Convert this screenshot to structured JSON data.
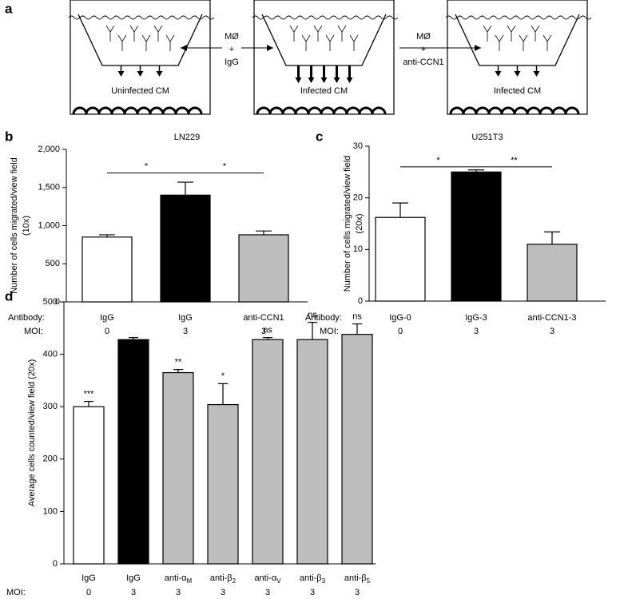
{
  "panel_labels": [
    "a",
    "b",
    "c",
    "d"
  ],
  "panel_a": {
    "chambers": [
      "Uninfected CM",
      "Infected CM",
      "Infected CM"
    ],
    "treatments": [
      [
        "MØ",
        "+",
        "IgG"
      ],
      [
        "MØ",
        "+",
        "anti-CCN1"
      ]
    ]
  },
  "chart_data": [
    {
      "type": "bar",
      "title": "LN229",
      "ylabel": [
        "Number of cells migrated/view field",
        "(10x)"
      ],
      "row_labels": [
        "Antibody:",
        "MOI:"
      ],
      "categories": [
        "IgG",
        "IgG",
        "anti-CCN1"
      ],
      "moi": [
        0,
        3,
        3
      ],
      "values": [
        850,
        1400,
        880
      ],
      "errors": [
        30,
        170,
        50
      ],
      "colors": [
        "#ffffff",
        "#000000",
        "#bebebe"
      ],
      "ylim": [
        0,
        2000
      ],
      "yticks": [
        0,
        500,
        {
          "value": 1000,
          "label": "1,000"
        },
        {
          "value": 1500,
          "label": "1,500"
        },
        {
          "value": 2000,
          "label": "2,000"
        }
      ],
      "brackets": [
        {
          "text": "*",
          "from": 0,
          "to": 1,
          "y": 1690
        },
        {
          "text": "*",
          "from": 1,
          "to": 2,
          "y": 1690
        }
      ]
    },
    {
      "type": "bar",
      "title": "U251T3",
      "ylabel": [
        "Number of cells migrated/view field",
        "(20x)"
      ],
      "row_labels": [
        "Antibody:",
        "MOI:"
      ],
      "categories": [
        "IgG-0",
        "IgG-3",
        "anti-CCN1-3"
      ],
      "moi": [
        0,
        3,
        3
      ],
      "values": [
        16.2,
        25,
        11
      ],
      "errors": [
        2.8,
        0.4,
        2.4
      ],
      "colors": [
        "#ffffff",
        "#000000",
        "#bebebe"
      ],
      "ylim": [
        0,
        30
      ],
      "yticks": [
        0,
        10,
        20,
        30
      ],
      "brackets": [
        {
          "text": "*",
          "from": 0,
          "to": 1,
          "y": 26
        },
        {
          "text": "**",
          "from": 1,
          "to": 2,
          "y": 26
        }
      ]
    },
    {
      "type": "bar",
      "ylabel": [
        "Average cells counted/view field (20x)"
      ],
      "row_labels": [
        "MOI:"
      ],
      "categories": [
        "IgG",
        "IgG",
        {
          "base": "anti-α",
          "sub": "M"
        },
        {
          "base": "anti-β",
          "sub": "2"
        },
        {
          "base": "anti-α",
          "sub": "V"
        },
        {
          "base": "anti-β",
          "sub": "3"
        },
        {
          "base": "anti-β",
          "sub": "5"
        }
      ],
      "moi": [
        0,
        3,
        3,
        3,
        3,
        3,
        3
      ],
      "values": [
        300,
        428,
        365,
        304,
        428,
        428,
        438
      ],
      "errors": [
        10,
        4,
        6,
        40,
        4,
        33,
        20
      ],
      "marks": [
        "***",
        null,
        "**",
        "*",
        "ns",
        "ns",
        "ns"
      ],
      "colors": [
        "#ffffff",
        "#000000",
        "#bebebe",
        "#bebebe",
        "#bebebe",
        "#bebebe",
        "#bebebe"
      ],
      "ylim": [
        0,
        500
      ],
      "yticks": [
        0,
        100,
        200,
        300,
        400,
        500
      ]
    }
  ]
}
